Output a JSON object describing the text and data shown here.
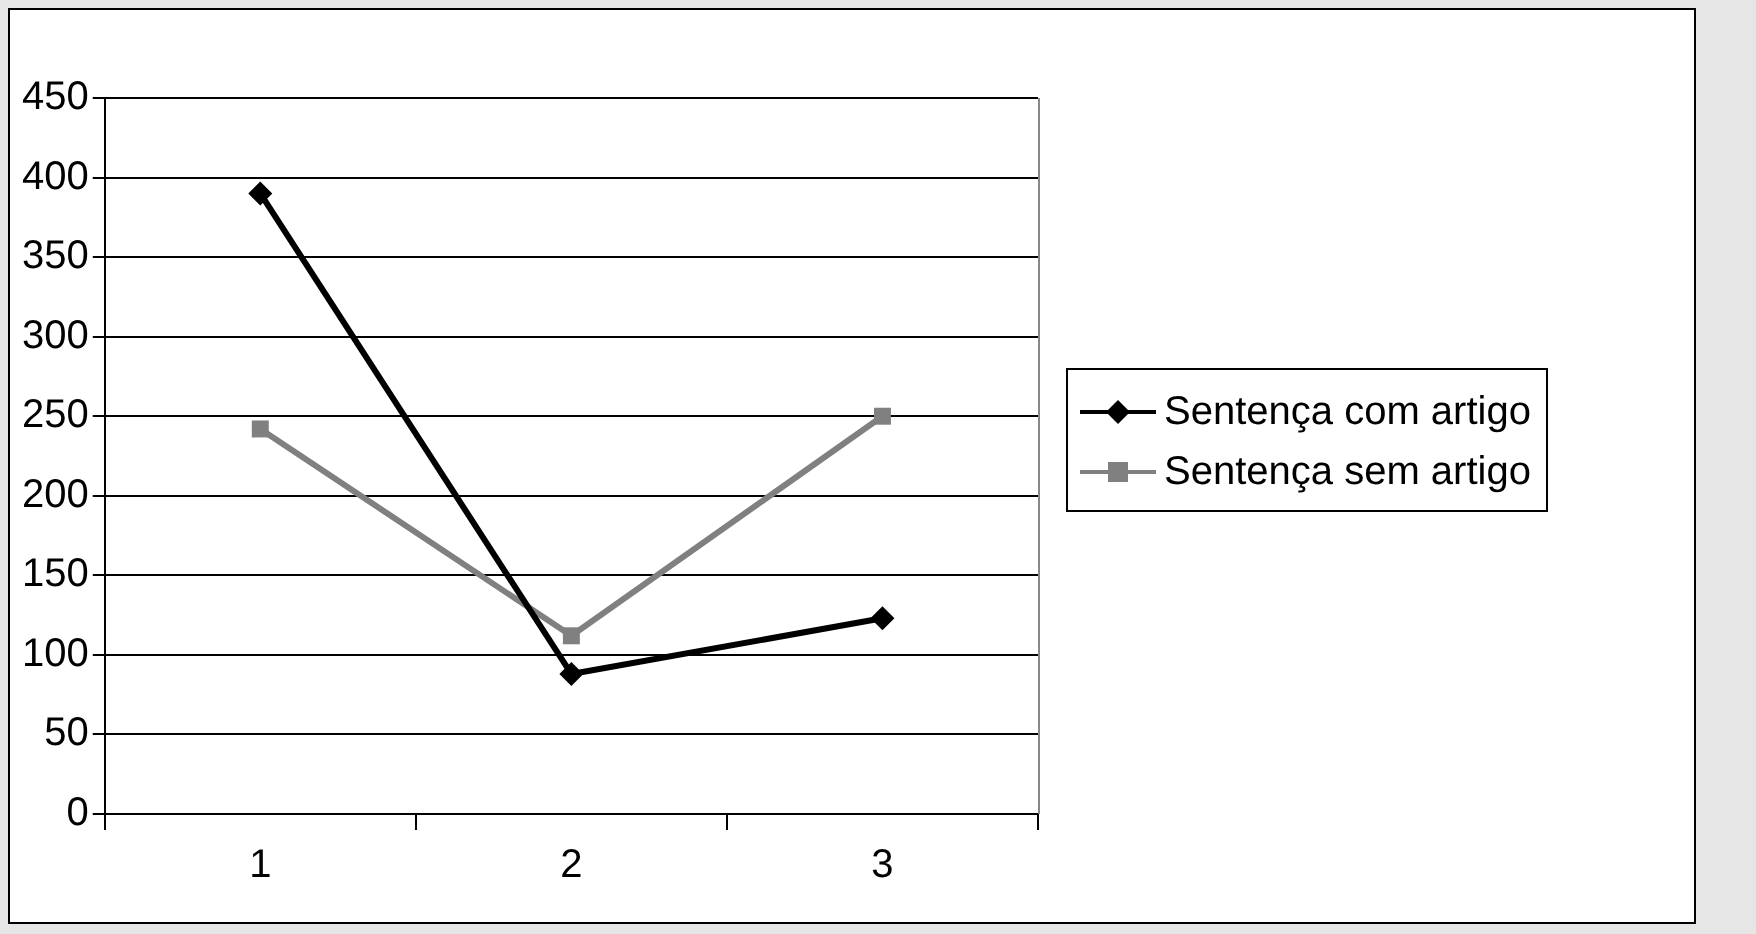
{
  "chart_data": {
    "type": "line",
    "categories": [
      "1",
      "2",
      "3"
    ],
    "series": [
      {
        "name": "Sentença com artigo",
        "color": "#000000",
        "marker": "diamond",
        "values": [
          390,
          88,
          123
        ]
      },
      {
        "name": "Sentença sem artigo",
        "color": "#808080",
        "marker": "square",
        "values": [
          242,
          112,
          250
        ]
      }
    ],
    "ylim": [
      0,
      450
    ],
    "yticks": [
      0,
      50,
      100,
      150,
      200,
      250,
      300,
      350,
      400,
      450
    ],
    "grid": "y",
    "legend": "right",
    "line_style": "solid"
  }
}
